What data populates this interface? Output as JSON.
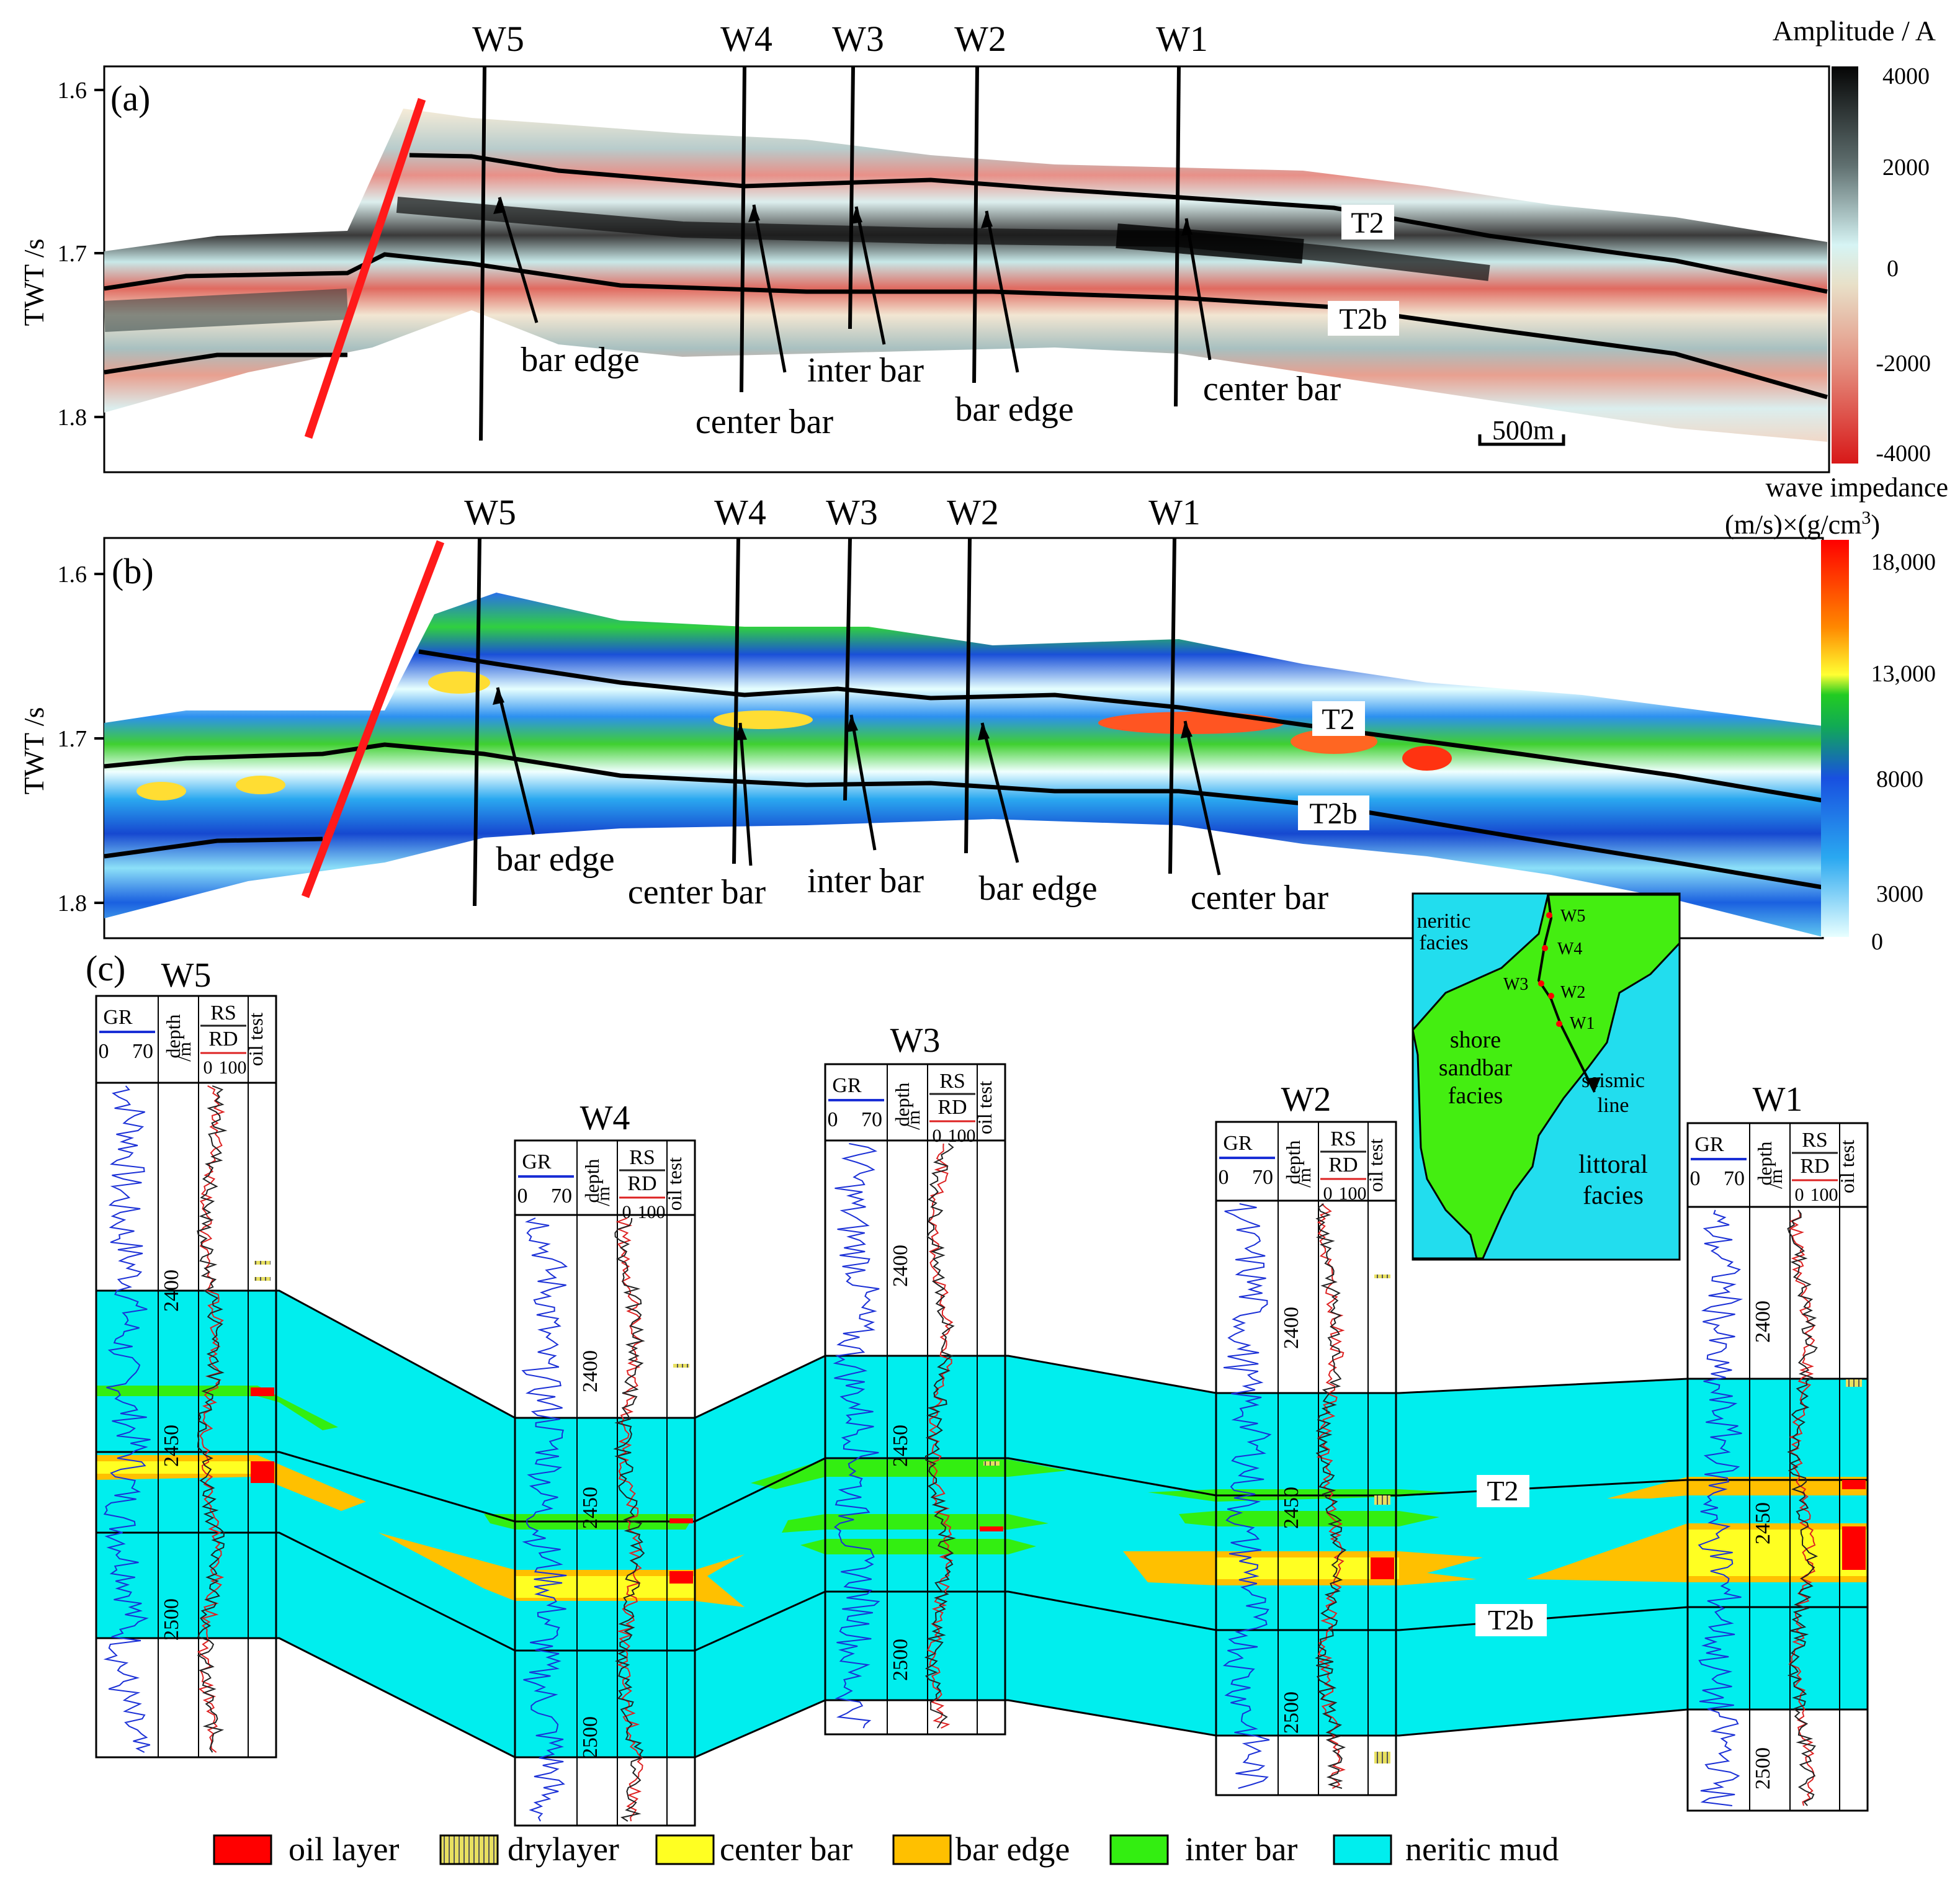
{
  "colors": {
    "fault": "#ff1a1a",
    "horizon": "#000000",
    "oil_layer": "#ff0000",
    "dry_layer": "#e8e060",
    "center_bar": "#ffff22",
    "bar_edge": "#ffc000",
    "inter_bar": "#33ee11",
    "neritic_mud": "#00eeee",
    "map_shore": "#44ee11",
    "map_sea": "#22ddee",
    "gr_curve": "#1a2fd6",
    "rd_curve": "#dd2222",
    "rs_curve": "#222222"
  },
  "panel_a": {
    "label": "(a)",
    "axis_label": "TWT  /s",
    "ticks": [
      "1.6",
      "1.7",
      "1.8"
    ],
    "colorbar_title": "Amplitude / A",
    "colorbar_ticks": [
      "4000",
      "2000",
      "0",
      "-2000",
      "-4000"
    ],
    "scale_bar": "500m",
    "wells": [
      "W5",
      "W4",
      "W3",
      "W2",
      "W1"
    ],
    "horizons": [
      "T2",
      "T2b"
    ],
    "annotations": [
      "bar edge",
      "center bar",
      "inter bar",
      "bar edge",
      "center bar"
    ]
  },
  "panel_b": {
    "label": "(b)",
    "axis_label": "TWT  /s",
    "ticks": [
      "1.6",
      "1.7",
      "1.8"
    ],
    "colorbar_title_1": "wave impedance",
    "colorbar_title_2": "(m/s)×(g/cm",
    "colorbar_title_sup": "3",
    "colorbar_title_end": ")",
    "colorbar_ticks": [
      "18,000",
      "13,000",
      "8000",
      "3000",
      "0"
    ],
    "wells": [
      "W5",
      "W4",
      "W3",
      "W2",
      "W1"
    ],
    "horizons": [
      "T2",
      "T2b"
    ],
    "annotations": [
      "bar edge",
      "center bar",
      "inter bar",
      "bar edge",
      "center bar"
    ]
  },
  "panel_c": {
    "label": "(c)",
    "wells": [
      {
        "name": "W5",
        "depths": [
          "2400",
          "2450",
          "2500"
        ]
      },
      {
        "name": "W4",
        "depths": [
          "2400",
          "2450",
          "2500"
        ]
      },
      {
        "name": "W3",
        "depths": [
          "2400",
          "2450",
          "2500"
        ]
      },
      {
        "name": "W2",
        "depths": [
          "2400",
          "2450",
          "2500"
        ]
      },
      {
        "name": "W1",
        "depths": [
          "2400",
          "2450",
          "2500"
        ]
      }
    ],
    "headers": {
      "gr": "GR",
      "gr_range_min": "0",
      "gr_range_max": "70",
      "depth_1": "depth",
      "depth_2": "/m",
      "rs": "RS",
      "rd": "RD",
      "rd_range_min": "0",
      "rd_range_max": "100",
      "oil_test": "oil test"
    },
    "horizons": [
      "T2",
      "T2b"
    ]
  },
  "inset_map": {
    "labels": [
      "neritic",
      "facies",
      "shore",
      "sandbar",
      "facies",
      "seismic",
      "line",
      "littoral",
      "facies"
    ],
    "wells": [
      "W5",
      "W4",
      "W3",
      "W2",
      "W1"
    ]
  },
  "legend": [
    {
      "label": "oil layer",
      "swatch": "oil"
    },
    {
      "label": "drylayer",
      "swatch": "dry"
    },
    {
      "label": "center bar",
      "swatch": "center"
    },
    {
      "label": "bar edge",
      "swatch": "edge"
    },
    {
      "label": "inter bar",
      "swatch": "inter"
    },
    {
      "label": "neritic mud",
      "swatch": "mud"
    }
  ]
}
